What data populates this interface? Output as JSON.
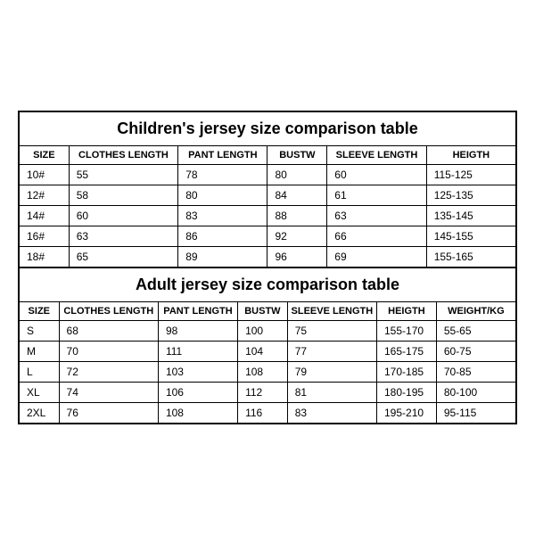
{
  "colors": {
    "border": "#000000",
    "background": "#ffffff",
    "text": "#000000"
  },
  "children_table": {
    "title": "Children's jersey size comparison table",
    "columns": [
      "SIZE",
      "CLOTHES LENGTH",
      "PANT LENGTH",
      "BUSTW",
      "SLEEVE LENGTH",
      "HEIGTH"
    ],
    "col_widths": [
      "10%",
      "22%",
      "18%",
      "12%",
      "20%",
      "18%"
    ],
    "rows": [
      [
        "10#",
        "55",
        "78",
        "80",
        "60",
        "115-125"
      ],
      [
        "12#",
        "58",
        "80",
        "84",
        "61",
        "125-135"
      ],
      [
        "14#",
        "60",
        "83",
        "88",
        "63",
        "135-145"
      ],
      [
        "16#",
        "63",
        "86",
        "92",
        "66",
        "145-155"
      ],
      [
        "18#",
        "65",
        "89",
        "96",
        "69",
        "155-165"
      ]
    ]
  },
  "adult_table": {
    "title": "Adult jersey size comparison table",
    "columns": [
      "SIZE",
      "CLOTHES LENGTH",
      "PANT LENGTH",
      "BUSTW",
      "SLEEVE LENGTH",
      "HEIGTH",
      "WEIGHT/KG"
    ],
    "col_widths": [
      "8%",
      "20%",
      "16%",
      "10%",
      "18%",
      "12%",
      "16%"
    ],
    "rows": [
      [
        "S",
        "68",
        "98",
        "100",
        "75",
        "155-170",
        "55-65"
      ],
      [
        "M",
        "70",
        "111",
        "104",
        "77",
        "165-175",
        "60-75"
      ],
      [
        "L",
        "72",
        "103",
        "108",
        "79",
        "170-185",
        "70-85"
      ],
      [
        "XL",
        "74",
        "106",
        "112",
        "81",
        "180-195",
        "80-100"
      ],
      [
        "2XL",
        "76",
        "108",
        "116",
        "83",
        "195-210",
        "95-115"
      ]
    ]
  }
}
